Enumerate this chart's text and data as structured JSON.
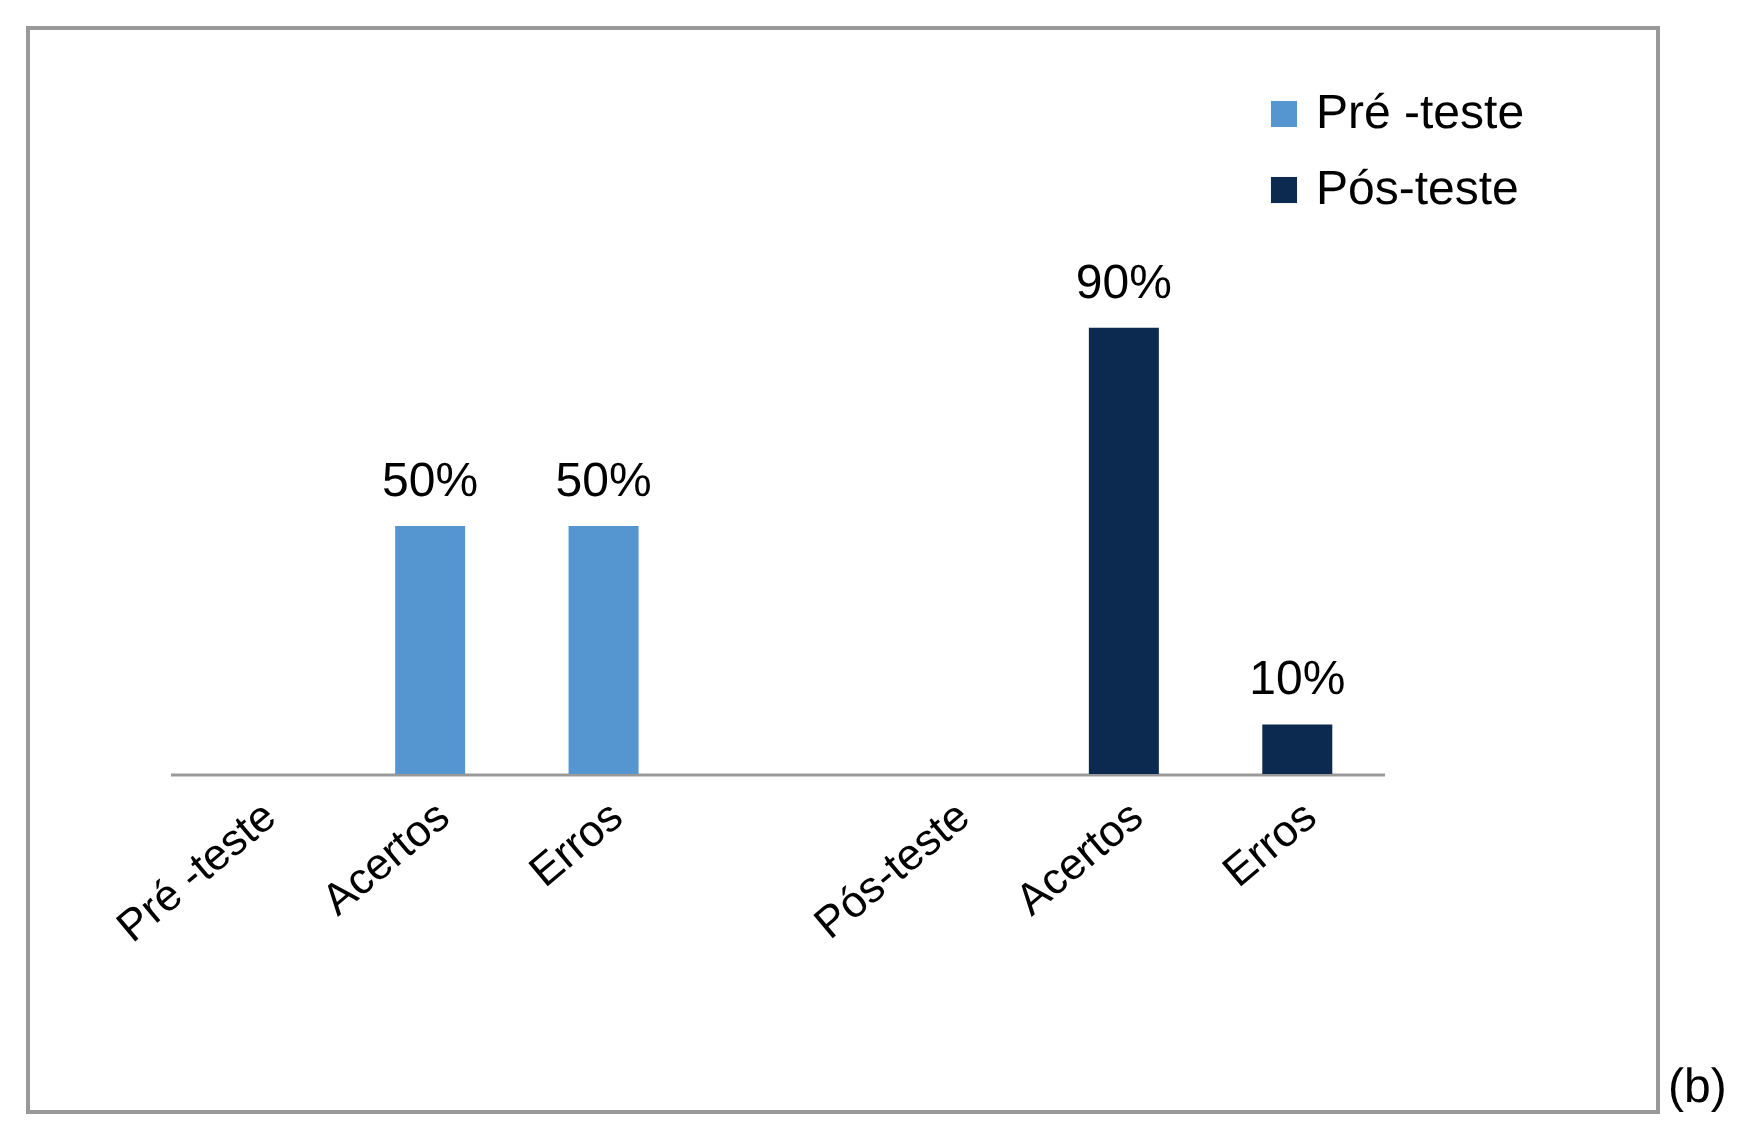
{
  "chart_data": {
    "type": "bar",
    "categories": [
      "Pré -teste",
      "Acertos",
      "Erros",
      null,
      "Pós-teste",
      "Acertos",
      "Erros"
    ],
    "series": [
      {
        "name": "Pré -teste",
        "color": "#5596d0",
        "values": [
          null,
          50,
          50,
          null,
          null,
          null,
          null
        ],
        "value_labels": [
          null,
          "50%",
          "50%",
          null,
          null,
          null,
          null
        ]
      },
      {
        "name": "Pós-teste",
        "color": "#0c2a4f",
        "values": [
          null,
          null,
          null,
          null,
          null,
          90,
          10
        ],
        "value_labels": [
          null,
          null,
          null,
          null,
          null,
          "90%",
          "10%"
        ]
      }
    ],
    "grid": false,
    "legend": "top right",
    "annotations": [
      "(b)"
    ]
  }
}
